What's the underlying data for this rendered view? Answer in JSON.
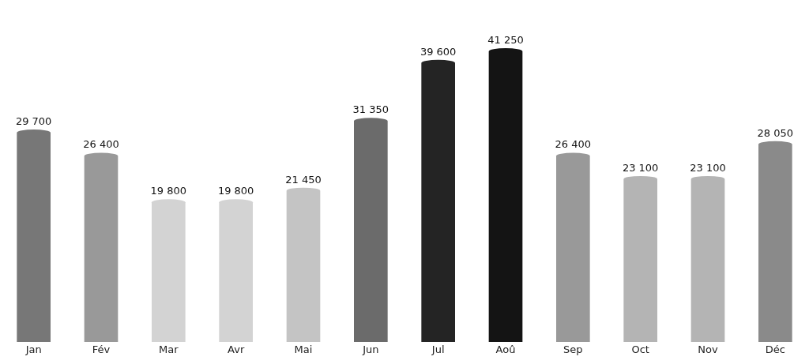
{
  "chart_data": {
    "type": "bar",
    "categories": [
      "Jan",
      "Fév",
      "Mar",
      "Avr",
      "Mai",
      "Jun",
      "Jul",
      "Aoû",
      "Sep",
      "Oct",
      "Nov",
      "Déc"
    ],
    "values": [
      29700,
      26400,
      19800,
      19800,
      21450,
      31350,
      39600,
      41250,
      26400,
      23100,
      23100,
      28050
    ],
    "colors": [
      "#777777",
      "#999999",
      "#d3d3d3",
      "#d3d3d3",
      "#c4c4c4",
      "#6b6b6b",
      "#242424",
      "#141414",
      "#999999",
      "#b4b4b4",
      "#b4b4b4",
      "#8a8a8a"
    ],
    "value_labels": [
      "29 700",
      "26 400",
      "19 800",
      "19 800",
      "21 450",
      "31 350",
      "39 600",
      "41 250",
      "26 400",
      "23 100",
      "23 100",
      "28 050"
    ],
    "tick_labels": "x"
  }
}
